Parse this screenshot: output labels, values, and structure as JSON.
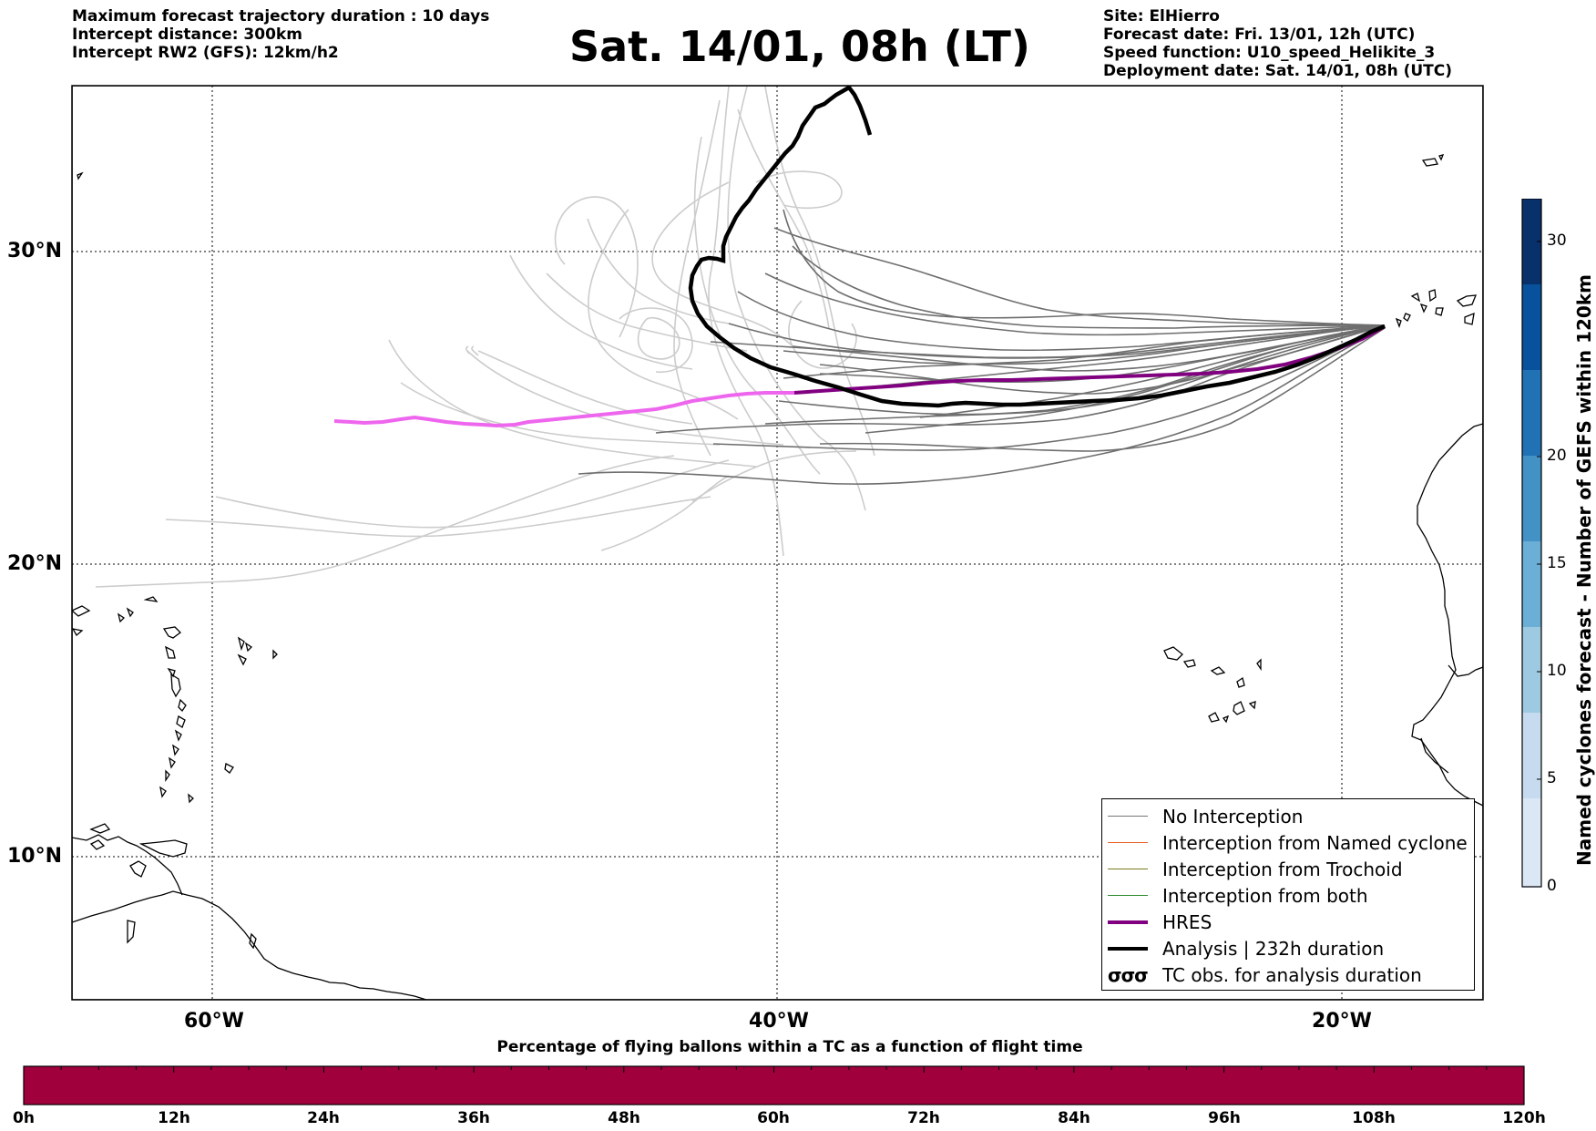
{
  "header": {
    "left_lines": [
      "Maximum forecast trajectory duration : 10 days",
      "Intercept distance: 300km",
      "Intercept RW2 (GFS):  12km/h2"
    ],
    "title": "Sat. 14/01, 08h (LT)",
    "right_lines": [
      "Site: ElHierro",
      "Forecast date: Fri. 13/01, 12h (UTC)",
      "Speed function: U10_speed_Helikite_3",
      "Deployment date: Sat. 14/01, 08h (UTC)"
    ]
  },
  "map": {
    "lon_range": [
      -65,
      15
    ],
    "lat_range": [
      5.5,
      34.8
    ],
    "lat_labels": [
      "30°N",
      "20°N",
      "10°N"
    ],
    "lon_labels": [
      "60°W",
      "40°W",
      "20°W"
    ]
  },
  "legend": {
    "items": [
      {
        "label": "No Interception",
        "color": "#777777",
        "style": "thin"
      },
      {
        "label": "Interception from Named cyclone",
        "color": "#e8622a",
        "style": "thin"
      },
      {
        "label": "Interception from Trochoid",
        "color": "#7a7a20",
        "style": "thin"
      },
      {
        "label": "Interception from both",
        "color": "#2c8a2c",
        "style": "thin"
      },
      {
        "label": "HRES",
        "color": "#800080",
        "style": "thick"
      },
      {
        "label": "Analysis | 232h duration",
        "color": "#000000",
        "style": "thick"
      },
      {
        "label": "TC obs. for analysis duration",
        "color": "#000000",
        "style": "symbol",
        "symbol": "σσσ"
      }
    ]
  },
  "colorbar": {
    "title": "Named cyclones forecast - Number of GEFS within 120km",
    "ticks": [
      "0",
      "5",
      "10",
      "15",
      "20",
      "30"
    ],
    "colors": [
      "#dbe7f5",
      "#c6dbef",
      "#9ecae1",
      "#6baed6",
      "#4292c6",
      "#2171b5",
      "#08519c",
      "#08306b"
    ]
  },
  "percentage_bar": {
    "title": "Percentage of flying ballons within a TC as a function of flight time",
    "color": "#a0003c",
    "labels": [
      "0h",
      "12h",
      "24h",
      "36h",
      "48h",
      "60h",
      "72h",
      "84h",
      "96h",
      "108h",
      "120h"
    ]
  }
}
